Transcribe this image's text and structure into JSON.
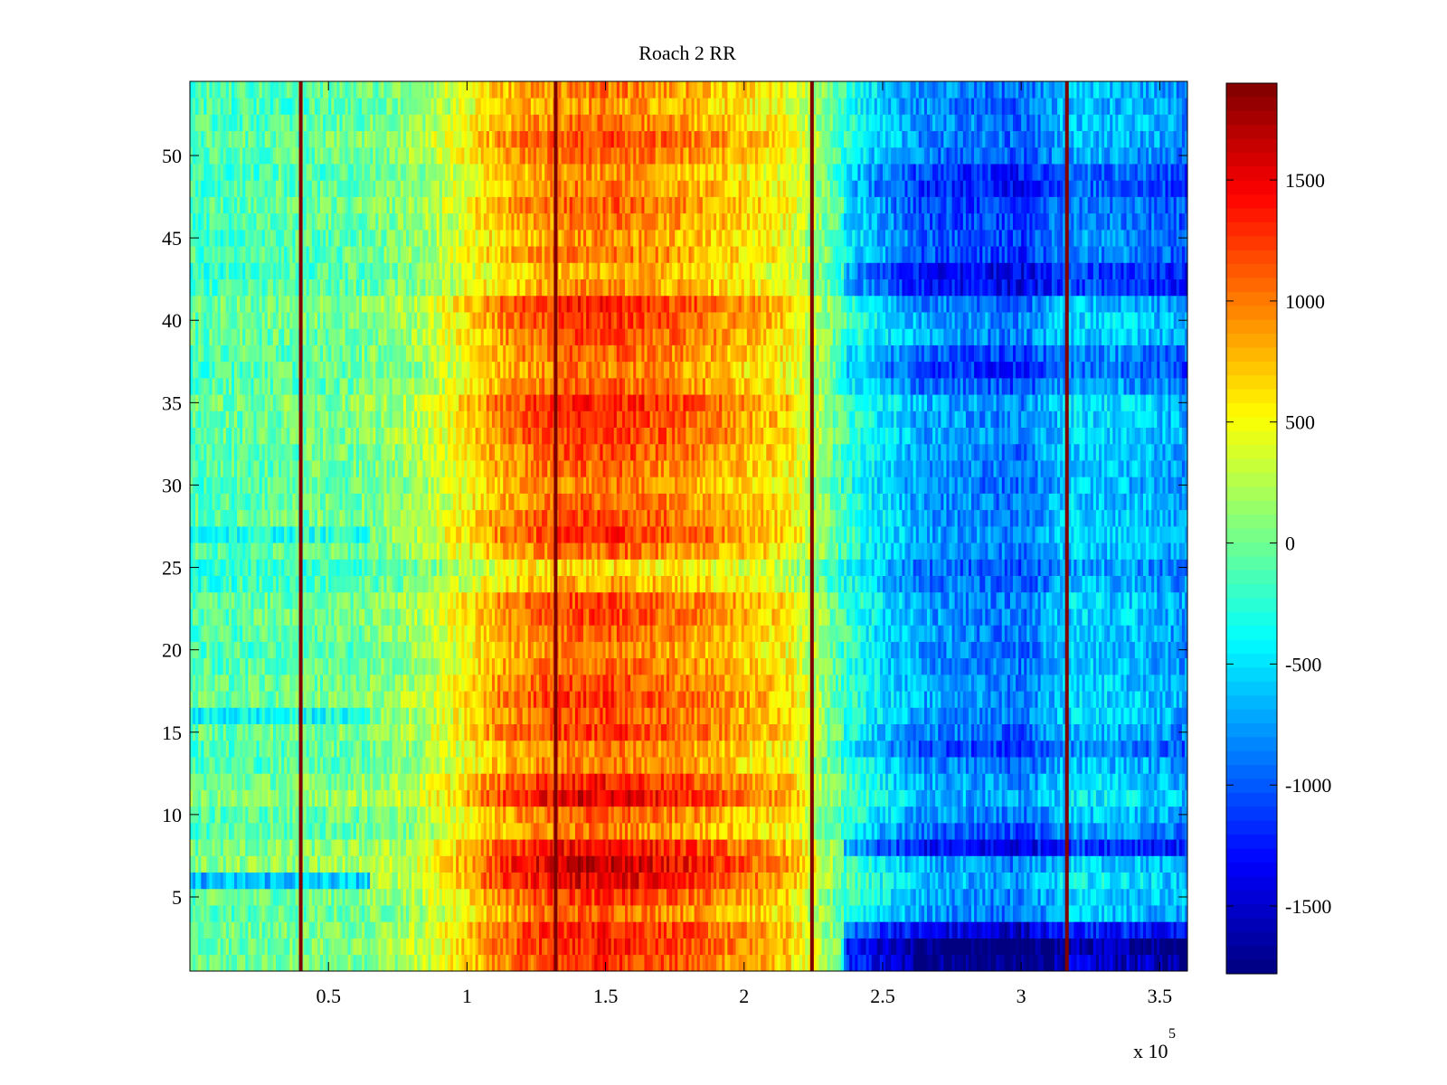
{
  "chart_data": {
    "type": "heatmap",
    "title": "Roach 2 RR",
    "xlabel": "",
    "ylabel": "",
    "x_exponent_label": "x 10",
    "x_exponent": "5",
    "xlim": [
      0,
      360000
    ],
    "ylim": [
      0.5,
      54.5
    ],
    "n_rows": 54,
    "n_cols": 360,
    "xticks": [
      {
        "value": 50000,
        "label": "0.5"
      },
      {
        "value": 100000,
        "label": "1"
      },
      {
        "value": 150000,
        "label": "1.5"
      },
      {
        "value": 200000,
        "label": "2"
      },
      {
        "value": 250000,
        "label": "2.5"
      },
      {
        "value": 300000,
        "label": "3"
      },
      {
        "value": 350000,
        "label": "3.5"
      }
    ],
    "yticks": [
      {
        "value": 5,
        "label": "5"
      },
      {
        "value": 10,
        "label": "10"
      },
      {
        "value": 15,
        "label": "15"
      },
      {
        "value": 20,
        "label": "20"
      },
      {
        "value": 25,
        "label": "25"
      },
      {
        "value": 30,
        "label": "30"
      },
      {
        "value": 35,
        "label": "35"
      },
      {
        "value": 40,
        "label": "40"
      },
      {
        "value": 45,
        "label": "45"
      },
      {
        "value": 50,
        "label": "50"
      }
    ],
    "colorbar": {
      "colormap": "jet",
      "clim": [
        -1780,
        1900
      ],
      "ticks": [
        {
          "value": 1500,
          "label": "1500"
        },
        {
          "value": 1000,
          "label": "1000"
        },
        {
          "value": 500,
          "label": "500"
        },
        {
          "value": 0,
          "label": "0"
        },
        {
          "value": -500,
          "label": "-500"
        },
        {
          "value": -1000,
          "label": "-1000"
        },
        {
          "value": -1500,
          "label": "-1500"
        }
      ]
    },
    "column_profile": [
      {
        "x": 0,
        "value": -150
      },
      {
        "x": 20000,
        "value": -120
      },
      {
        "x": 40000,
        "value": -80
      },
      {
        "x": 60000,
        "value": -40
      },
      {
        "x": 80000,
        "value": 100
      },
      {
        "x": 95000,
        "value": 350
      },
      {
        "x": 110000,
        "value": 700
      },
      {
        "x": 125000,
        "value": 900
      },
      {
        "x": 140000,
        "value": 1000
      },
      {
        "x": 155000,
        "value": 1000
      },
      {
        "x": 170000,
        "value": 900
      },
      {
        "x": 185000,
        "value": 800
      },
      {
        "x": 200000,
        "value": 650
      },
      {
        "x": 215000,
        "value": 500
      },
      {
        "x": 225000,
        "value": 200
      },
      {
        "x": 235000,
        "value": -200
      },
      {
        "x": 248000,
        "value": -500
      },
      {
        "x": 265000,
        "value": -800
      },
      {
        "x": 280000,
        "value": -850
      },
      {
        "x": 300000,
        "value": -950
      },
      {
        "x": 318000,
        "value": -600
      },
      {
        "x": 340000,
        "value": -650
      },
      {
        "x": 360000,
        "value": -800
      }
    ],
    "row_profile": [
      {
        "y": 1,
        "value": 150,
        "right_extra": -700
      },
      {
        "y": 2,
        "value": 200,
        "right_extra": -800
      },
      {
        "y": 3,
        "value": 200,
        "right_extra": -500
      },
      {
        "y": 4,
        "value": 50,
        "right_extra": 0
      },
      {
        "y": 5,
        "value": 150,
        "right_extra": 0
      },
      {
        "y": 6,
        "value": 300,
        "left_extra": -700,
        "right_extra": 0
      },
      {
        "y": 7,
        "value": 350,
        "right_extra": -100
      },
      {
        "y": 8,
        "value": 250,
        "right_extra": -450
      },
      {
        "y": 9,
        "value": 0,
        "right_extra": -100
      },
      {
        "y": 10,
        "value": 50,
        "right_extra": 0
      },
      {
        "y": 11,
        "value": 300,
        "right_extra": 0
      },
      {
        "y": 12,
        "value": 200,
        "right_extra": 0
      },
      {
        "y": 13,
        "value": 0,
        "right_extra": 0
      },
      {
        "y": 14,
        "value": 0,
        "right_extra": -150
      },
      {
        "y": 15,
        "value": 150,
        "right_extra": -100
      },
      {
        "y": 16,
        "value": 100,
        "left_extra": -350,
        "right_extra": 0
      },
      {
        "y": 17,
        "value": 150,
        "right_extra": 0
      },
      {
        "y": 18,
        "value": 100,
        "right_extra": 0
      },
      {
        "y": 19,
        "value": 50,
        "right_extra": 0
      },
      {
        "y": 20,
        "value": 0,
        "right_extra": 0
      },
      {
        "y": 21,
        "value": 50,
        "right_extra": 0
      },
      {
        "y": 22,
        "value": 100,
        "right_extra": 0
      },
      {
        "y": 23,
        "value": 100,
        "right_extra": 0
      },
      {
        "y": 24,
        "value": -100,
        "right_extra": 0
      },
      {
        "y": 25,
        "value": -200,
        "right_extra": 0
      },
      {
        "y": 26,
        "value": 50,
        "right_extra": 0
      },
      {
        "y": 27,
        "value": 150,
        "left_extra": -300,
        "right_extra": 0
      },
      {
        "y": 28,
        "value": 100,
        "right_extra": 0
      },
      {
        "y": 29,
        "value": 50,
        "right_extra": 0
      },
      {
        "y": 30,
        "value": 0,
        "right_extra": 0
      },
      {
        "y": 31,
        "value": 50,
        "right_extra": 0
      },
      {
        "y": 32,
        "value": 100,
        "right_extra": 0
      },
      {
        "y": 33,
        "value": 150,
        "right_extra": 0
      },
      {
        "y": 34,
        "value": 150,
        "right_extra": 0
      },
      {
        "y": 35,
        "value": 200,
        "right_extra": 0
      },
      {
        "y": 36,
        "value": 50,
        "right_extra": -100
      },
      {
        "y": 37,
        "value": 0,
        "right_extra": -200
      },
      {
        "y": 38,
        "value": 50,
        "right_extra": -150
      },
      {
        "y": 39,
        "value": 100,
        "right_extra": 0
      },
      {
        "y": 40,
        "value": 150,
        "right_extra": 0
      },
      {
        "y": 41,
        "value": 200,
        "right_extra": -100
      },
      {
        "y": 42,
        "value": -50,
        "right_extra": -300
      },
      {
        "y": 43,
        "value": -100,
        "right_extra": -300
      },
      {
        "y": 44,
        "value": 0,
        "right_extra": -150
      },
      {
        "y": 45,
        "value": -50,
        "right_extra": -100
      },
      {
        "y": 46,
        "value": 0,
        "right_extra": -150
      },
      {
        "y": 47,
        "value": 50,
        "right_extra": -200
      },
      {
        "y": 48,
        "value": 0,
        "right_extra": -250
      },
      {
        "y": 49,
        "value": -50,
        "right_extra": -200
      },
      {
        "y": 50,
        "value": 50,
        "right_extra": -100
      },
      {
        "y": 51,
        "value": 100,
        "right_extra": -50
      },
      {
        "y": 52,
        "value": 0,
        "right_extra": 0
      },
      {
        "y": 53,
        "value": -50,
        "right_extra": 0
      },
      {
        "y": 54,
        "value": 0,
        "right_extra": 0
      }
    ],
    "noise_amplitude": 260,
    "vertical_lines": [
      {
        "x": 40000,
        "value": 1900
      },
      {
        "x": 132000,
        "value": 1900
      },
      {
        "x": 224500,
        "value": 1900
      },
      {
        "x": 316500,
        "value": 1900
      }
    ]
  }
}
